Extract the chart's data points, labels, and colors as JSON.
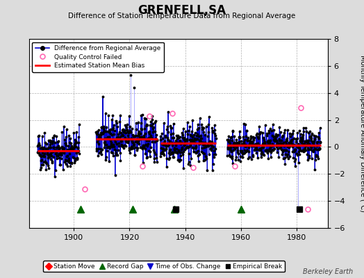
{
  "title": "GRENFELL,SA",
  "subtitle": "Difference of Station Temperature Data from Regional Average",
  "ylabel": "Monthly Temperature Anomaly Difference (°C)",
  "watermark": "Berkeley Earth",
  "ylim": [
    -6,
    8
  ],
  "yticks": [
    -6,
    -4,
    -2,
    0,
    2,
    4,
    6,
    8
  ],
  "xlim": [
    1884,
    1991
  ],
  "xticks": [
    1900,
    1920,
    1940,
    1960,
    1980
  ],
  "bg_color": "#dcdcdc",
  "plot_bg_color": "#ffffff",
  "grid_color": "#b0b0b0",
  "seed": 42,
  "segments": [
    {
      "start": 1887.0,
      "end": 1902.0,
      "bias": -0.28,
      "std": 0.72
    },
    {
      "start": 1908.0,
      "end": 1930.0,
      "bias": 0.58,
      "std": 0.82
    },
    {
      "start": 1931.0,
      "end": 1951.0,
      "bias": 0.28,
      "std": 0.75
    },
    {
      "start": 1955.0,
      "end": 1988.5,
      "bias": 0.1,
      "std": 0.62
    }
  ],
  "bias_segments": [
    {
      "start": 1887.0,
      "end": 1902.0,
      "bias": -0.28
    },
    {
      "start": 1908.0,
      "end": 1930.0,
      "bias": 0.58
    },
    {
      "start": 1931.0,
      "end": 1951.0,
      "bias": 0.28
    },
    {
      "start": 1955.0,
      "end": 1988.5,
      "bias": 0.1
    }
  ],
  "record_gaps": [
    1902.5,
    1921.0,
    1936.0,
    1960.0
  ],
  "empirical_breaks": [
    1936.5,
    1981.0
  ],
  "qc_failed_points": [
    {
      "year": 1904.0,
      "value": -3.1
    },
    {
      "year": 1924.5,
      "value": -1.4
    },
    {
      "year": 1927.2,
      "value": 2.3
    },
    {
      "year": 1935.3,
      "value": 2.5
    },
    {
      "year": 1942.8,
      "value": -1.5
    },
    {
      "year": 1957.8,
      "value": -1.4
    },
    {
      "year": 1981.3,
      "value": 2.9
    },
    {
      "year": 1984.0,
      "value": -4.6
    }
  ],
  "extra_spikes": [
    {
      "year": 1920.4,
      "value": 5.3,
      "base": 0.58
    },
    {
      "year": 1921.5,
      "value": 4.4,
      "base": 0.58
    },
    {
      "year": 1980.5,
      "value": -4.7,
      "base": 0.1
    }
  ]
}
